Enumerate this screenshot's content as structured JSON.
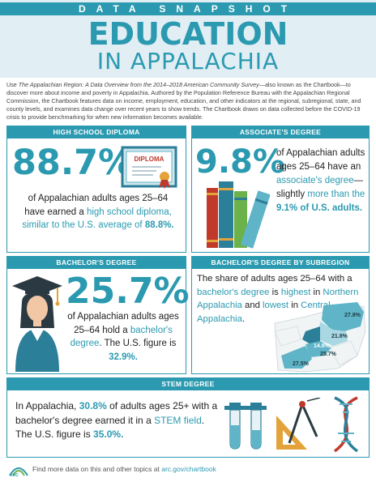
{
  "header": {
    "band": "DATA SNAPSHOT",
    "title_line1": "EDUCATION",
    "title_line2": "IN APPALACHIA"
  },
  "intro": {
    "lead": "Use ",
    "pub_title": "The Appalachian Region: A Data Overview from the 2014–2018 American Community Survey",
    "rest": "—also known as the Chartbook—to discover more about income and poverty in Appalachia. Authored by the Population Reference Bureau with the Appalachian Regional Commission, the Chartbook features data on income, employment, education, and other indicators at the regional, subregional, state, and county levels, and examines data change over recent years to show trends. The Chartbook draws on data collected before the COVID-19 crisis to provide benchmarking for when new information becomes available."
  },
  "high_school": {
    "heading": "HIGH SCHOOL DIPLOMA",
    "value": "88.7%",
    "diploma_label": "DIPLOMA",
    "text_a": "of Appalachian adults ages 25–64 have earned a ",
    "text_b": "high school diploma, similar to the U.S. average of ",
    "text_c": "88.8%."
  },
  "associates": {
    "heading": "ASSOCIATE'S DEGREE",
    "value": "9.8%",
    "text_a": "of Appalachian adults ages 25–64 have an ",
    "text_b": "associate's degree",
    "text_c": "—slightly ",
    "text_d": "more than the ",
    "text_e": "9.1% of U.S. adults."
  },
  "bachelors": {
    "heading": "BACHELOR'S DEGREE",
    "value": "25.7%",
    "text_a": "of Appalachian adults ages 25–64 hold a ",
    "text_b": "bachelor's degree",
    "text_c": ". The U.S. figure is ",
    "text_d": "32.9%."
  },
  "subregion": {
    "heading": "BACHELOR'S DEGREE BY SUBREGION",
    "text_a": "The share of adults ages 25–64 with a ",
    "text_b": "bachelor's degree",
    "text_c": " is ",
    "text_d": "highest",
    "text_e": " in ",
    "text_f": "Northern Appalachia",
    "text_g": " and ",
    "text_h": "lowest",
    "text_i": " in ",
    "text_j": "Central Appalachia",
    "text_k": ".",
    "map_labels": [
      "27.8%",
      "21.8%",
      "14.8%",
      "25.7%",
      "27.5%"
    ]
  },
  "stem": {
    "heading": "STEM DEGREE",
    "text_a": "In Appalachia, ",
    "text_b": "30.8%",
    "text_c": " of adults ages 25+ with a bachelor's degree earned it in a ",
    "text_d": "STEM field",
    "text_e": ". The U.S. figure is ",
    "text_f": "35.0%."
  },
  "footer": {
    "logo": "ARC",
    "text": "Find more data on this and other topics at ",
    "link": "arc.gov/chartbook"
  },
  "colors": {
    "accent": "#2b9ab0",
    "map_dark": "#2b7f98",
    "map_mid": "#5fb4c7",
    "map_light": "#a9d8e2"
  }
}
